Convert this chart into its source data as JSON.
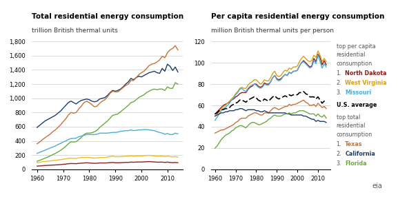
{
  "left_title": "Total residential energy consumption",
  "left_subtitle": "trillion British thermal units",
  "right_title": "Per capita residential energy consumption",
  "right_subtitle": "million British thermal units per person",
  "years": [
    1960,
    1961,
    1962,
    1963,
    1964,
    1965,
    1966,
    1967,
    1968,
    1969,
    1970,
    1971,
    1972,
    1973,
    1974,
    1975,
    1976,
    1977,
    1978,
    1979,
    1980,
    1981,
    1982,
    1983,
    1984,
    1985,
    1986,
    1987,
    1988,
    1989,
    1990,
    1991,
    1992,
    1993,
    1994,
    1995,
    1996,
    1997,
    1998,
    1999,
    2000,
    2001,
    2002,
    2003,
    2004,
    2005,
    2006,
    2007,
    2008,
    2009,
    2010,
    2011,
    2012,
    2013,
    2014
  ],
  "left": {
    "dark_blue": [
      590,
      620,
      650,
      680,
      700,
      720,
      740,
      760,
      790,
      820,
      860,
      900,
      940,
      960,
      940,
      920,
      950,
      970,
      980,
      990,
      980,
      960,
      950,
      960,
      990,
      1000,
      1010,
      1040,
      1080,
      1110,
      1100,
      1110,
      1130,
      1160,
      1200,
      1230,
      1280,
      1260,
      1290,
      1310,
      1300,
      1320,
      1340,
      1360,
      1370,
      1380,
      1360,
      1350,
      1420,
      1380,
      1480,
      1450,
      1390,
      1440,
      1370
    ],
    "orange": [
      360,
      385,
      415,
      445,
      470,
      495,
      530,
      555,
      590,
      625,
      670,
      710,
      765,
      800,
      790,
      800,
      850,
      890,
      940,
      960,
      940,
      910,
      880,
      890,
      930,
      960,
      980,
      1020,
      1070,
      1100,
      1090,
      1090,
      1120,
      1150,
      1180,
      1200,
      1250,
      1250,
      1290,
      1330,
      1360,
      1380,
      1420,
      1460,
      1480,
      1490,
      1510,
      1540,
      1590,
      1570,
      1640,
      1680,
      1700,
      1740,
      1680
    ],
    "green": [
      115,
      128,
      142,
      158,
      173,
      190,
      207,
      225,
      245,
      268,
      295,
      325,
      360,
      390,
      385,
      390,
      420,
      450,
      490,
      510,
      510,
      515,
      530,
      550,
      590,
      620,
      650,
      680,
      720,
      760,
      770,
      780,
      810,
      840,
      870,
      900,
      940,
      950,
      980,
      1010,
      1030,
      1050,
      1080,
      1100,
      1120,
      1130,
      1120,
      1130,
      1130,
      1110,
      1160,
      1140,
      1140,
      1220,
      1200
    ],
    "light_blue": [
      225,
      240,
      255,
      270,
      285,
      300,
      315,
      330,
      350,
      365,
      385,
      400,
      420,
      435,
      435,
      440,
      460,
      470,
      480,
      490,
      490,
      490,
      490,
      495,
      510,
      510,
      510,
      510,
      515,
      520,
      520,
      525,
      535,
      540,
      545,
      545,
      555,
      545,
      550,
      555,
      555,
      560,
      560,
      555,
      550,
      545,
      530,
      520,
      510,
      495,
      505,
      490,
      490,
      510,
      500
    ],
    "yellow": [
      95,
      100,
      107,
      112,
      116,
      120,
      124,
      128,
      133,
      138,
      143,
      148,
      155,
      158,
      155,
      155,
      162,
      166,
      168,
      170,
      168,
      163,
      160,
      162,
      168,
      168,
      168,
      174,
      181,
      185,
      179,
      177,
      179,
      182,
      186,
      186,
      190,
      186,
      190,
      190,
      190,
      193,
      196,
      198,
      193,
      190,
      186,
      186,
      188,
      180,
      186,
      180,
      175,
      180,
      172
    ],
    "maroon": [
      47,
      49,
      52,
      55,
      57,
      59,
      61,
      63,
      65,
      68,
      72,
      75,
      80,
      83,
      82,
      81,
      85,
      88,
      91,
      93,
      91,
      88,
      86,
      87,
      91,
      91,
      90,
      92,
      96,
      98,
      94,
      93,
      95,
      97,
      99,
      99,
      103,
      101,
      104,
      104,
      104,
      107,
      108,
      110,
      107,
      105,
      102,
      102,
      103,
      98,
      103,
      98,
      95,
      98,
      94
    ]
  },
  "right": {
    "dark_red": [
      52,
      54,
      56,
      58,
      60,
      61,
      62,
      63,
      65,
      66,
      68,
      69,
      71,
      72,
      72,
      72,
      75,
      77,
      78,
      80,
      80,
      78,
      77,
      78,
      81,
      80,
      80,
      82,
      86,
      88,
      85,
      84,
      85,
      87,
      89,
      88,
      91,
      90,
      92,
      92,
      93,
      97,
      100,
      102,
      100,
      98,
      96,
      97,
      104,
      101,
      108,
      105,
      98,
      102,
      98
    ],
    "yellow": [
      50,
      52,
      54,
      57,
      59,
      60,
      62,
      64,
      66,
      68,
      71,
      73,
      76,
      77,
      76,
      76,
      79,
      81,
      82,
      84,
      84,
      82,
      80,
      81,
      84,
      83,
      83,
      86,
      90,
      92,
      88,
      87,
      88,
      91,
      93,
      92,
      95,
      94,
      96,
      96,
      97,
      101,
      104,
      106,
      104,
      102,
      101,
      102,
      107,
      105,
      111,
      107,
      101,
      104,
      101
    ],
    "light_blue": [
      46,
      49,
      52,
      55,
      57,
      58,
      60,
      62,
      65,
      67,
      70,
      72,
      75,
      76,
      74,
      73,
      76,
      78,
      79,
      80,
      79,
      77,
      76,
      77,
      80,
      79,
      79,
      82,
      86,
      88,
      84,
      83,
      84,
      87,
      89,
      88,
      91,
      90,
      92,
      92,
      93,
      97,
      100,
      101,
      99,
      97,
      95,
      96,
      102,
      99,
      107,
      101,
      95,
      99,
      96
    ],
    "us_avg": [
      52,
      53,
      55,
      56,
      56,
      57,
      57,
      58,
      60,
      61,
      62,
      63,
      65,
      65,
      64,
      63,
      65,
      66,
      67,
      68,
      67,
      65,
      64,
      64,
      66,
      65,
      64,
      66,
      68,
      69,
      67,
      66,
      67,
      68,
      69,
      68,
      70,
      69,
      70,
      70,
      70,
      72,
      72,
      73,
      71,
      70,
      68,
      68,
      68,
      66,
      68,
      65,
      62,
      64,
      62
    ],
    "orange": [
      34,
      35,
      36,
      37,
      37,
      38,
      39,
      40,
      41,
      42,
      44,
      45,
      47,
      48,
      48,
      48,
      50,
      51,
      52,
      53,
      53,
      52,
      51,
      51,
      53,
      53,
      53,
      55,
      57,
      58,
      57,
      56,
      57,
      58,
      59,
      59,
      61,
      60,
      61,
      61,
      62,
      63,
      64,
      65,
      63,
      62,
      60,
      60,
      61,
      59,
      62,
      60,
      58,
      59,
      57
    ],
    "dark_blue": [
      50,
      51,
      52,
      53,
      53,
      54,
      54,
      55,
      55,
      55,
      56,
      56,
      57,
      57,
      56,
      55,
      56,
      56,
      56,
      56,
      55,
      55,
      54,
      54,
      55,
      54,
      53,
      53,
      53,
      53,
      53,
      53,
      53,
      53,
      53,
      52,
      52,
      51,
      51,
      51,
      51,
      51,
      51,
      50,
      50,
      49,
      48,
      47,
      47,
      45,
      46,
      45,
      45,
      45,
      44
    ],
    "green": [
      20,
      22,
      25,
      28,
      30,
      32,
      33,
      34,
      36,
      37,
      39,
      40,
      41,
      41,
      40,
      39,
      41,
      43,
      44,
      44,
      43,
      42,
      42,
      43,
      44,
      45,
      47,
      48,
      50,
      51,
      50,
      50,
      50,
      51,
      52,
      52,
      53,
      52,
      53,
      53,
      54,
      55,
      55,
      55,
      54,
      53,
      52,
      52,
      52,
      50,
      52,
      50,
      49,
      51,
      48
    ]
  },
  "colors": {
    "left_dark_blue": "#1b3d6e",
    "left_orange": "#c87137",
    "left_green": "#6aaa3a",
    "left_light_blue": "#4baed8",
    "left_yellow": "#f0c020",
    "left_maroon": "#8b2020",
    "right_dark_red": "#8b1a1a",
    "right_yellow": "#d4a017",
    "right_light_blue": "#4baed8",
    "right_us_avg": "#000000",
    "right_orange": "#c87137",
    "right_dark_blue": "#1b3d6e",
    "right_green": "#6aaa3a"
  },
  "left_ylim": [
    0,
    1800
  ],
  "left_yticks": [
    0,
    200,
    400,
    600,
    800,
    1000,
    1200,
    1400,
    1600,
    1800
  ],
  "right_ylim": [
    0,
    120
  ],
  "right_yticks": [
    0,
    20,
    40,
    60,
    80,
    100,
    120
  ],
  "xlim": [
    1958,
    2016
  ],
  "xticks": [
    1960,
    1970,
    1980,
    1990,
    2000,
    2010
  ]
}
